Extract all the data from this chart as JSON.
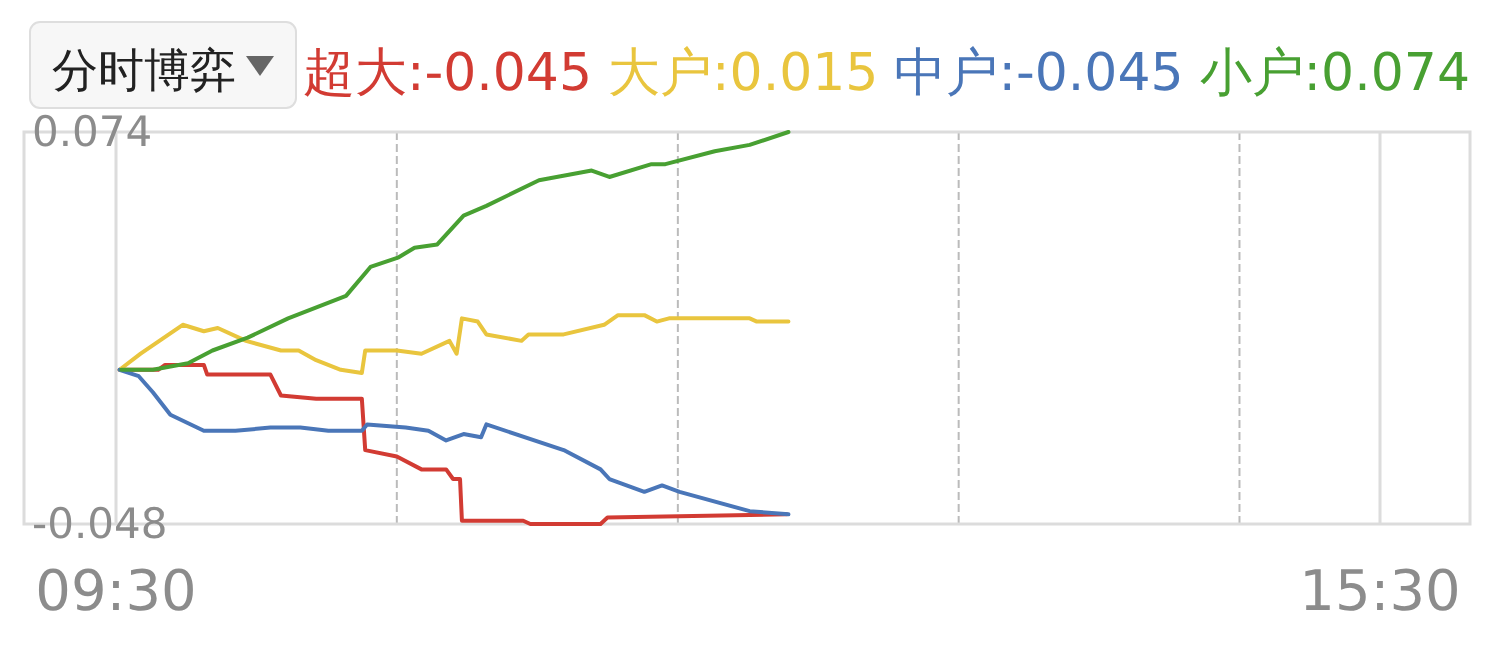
{
  "chart_data": {
    "type": "line",
    "title": "分时博弈",
    "series": [
      {
        "name": "超大:-0.045",
        "color": "#d23b33",
        "x": [
          9.517,
          9.7,
          9.733,
          9.917,
          9.933,
          10.233,
          10.283,
          10.45,
          10.667,
          10.683,
          10.833,
          10.95,
          11.067,
          11.1,
          11.133,
          11.142,
          11.433,
          11.467,
          11.8,
          11.833,
          12.683
        ],
        "values": [
          0.0,
          0.0,
          0.0015,
          0.0015,
          -0.0015,
          -0.0015,
          -0.008,
          -0.009,
          -0.009,
          -0.025,
          -0.027,
          -0.031,
          -0.031,
          -0.034,
          -0.034,
          -0.047,
          -0.047,
          -0.048,
          -0.048,
          -0.046,
          -0.045
        ]
      },
      {
        "name": "大户:0.015",
        "color": "#e9c53e",
        "x": [
          9.517,
          9.617,
          9.817,
          9.917,
          9.983,
          10.117,
          10.283,
          10.367,
          10.45,
          10.567,
          10.667,
          10.683,
          10.833,
          10.95,
          11.083,
          11.117,
          11.142,
          11.217,
          11.258,
          11.425,
          11.458,
          11.625,
          11.817,
          11.883,
          12.008,
          12.067,
          12.125,
          12.508,
          12.542,
          12.692
        ],
        "values": [
          0.0,
          0.005,
          0.014,
          0.012,
          0.013,
          0.009,
          0.006,
          0.006,
          0.003,
          0.0,
          -0.001,
          0.006,
          0.006,
          0.005,
          0.009,
          0.005,
          0.016,
          0.015,
          0.011,
          0.009,
          0.011,
          0.011,
          0.014,
          0.017,
          0.017,
          0.015,
          0.016,
          0.016,
          0.015,
          0.015
        ]
      },
      {
        "name": "中户:-0.045",
        "color": "#4a76b8",
        "x": [
          9.517,
          9.608,
          9.675,
          9.758,
          9.917,
          10.067,
          10.233,
          10.375,
          10.508,
          10.667,
          10.692,
          10.875,
          10.983,
          11.067,
          11.15,
          11.233,
          11.258,
          11.625,
          11.8,
          11.842,
          12.008,
          12.092,
          12.175,
          12.508,
          12.692
        ],
        "values": [
          0.0,
          -0.002,
          -0.007,
          -0.014,
          -0.019,
          -0.019,
          -0.018,
          -0.018,
          -0.019,
          -0.019,
          -0.017,
          -0.018,
          -0.019,
          -0.022,
          -0.02,
          -0.021,
          -0.017,
          -0.025,
          -0.031,
          -0.034,
          -0.038,
          -0.036,
          -0.038,
          -0.044,
          -0.045
        ]
      },
      {
        "name": "小户:0.074",
        "color": "#48a032",
        "x": [
          9.525,
          9.675,
          9.842,
          9.958,
          10.125,
          10.317,
          10.592,
          10.708,
          10.842,
          10.917,
          11.025,
          11.15,
          11.258,
          11.508,
          11.758,
          11.842,
          12.042,
          12.108,
          12.342,
          12.508,
          12.692
        ],
        "values": [
          0.0,
          0.0,
          0.002,
          0.006,
          0.01,
          0.016,
          0.023,
          0.032,
          0.035,
          0.038,
          0.039,
          0.048,
          0.051,
          0.059,
          0.062,
          0.06,
          0.064,
          0.064,
          0.068,
          0.07,
          0.074
        ]
      }
    ],
    "xlim": [
      9.5,
      15.5
    ],
    "xticks": [
      {
        "value": 9.5,
        "label": "09:30"
      },
      {
        "value": 10.833,
        "label": null
      },
      {
        "value": 12.167,
        "label": null
      },
      {
        "value": 13.5,
        "label": null
      },
      {
        "value": 14.833,
        "label": null
      },
      {
        "value": 15.5,
        "label": "15:30"
      }
    ],
    "ylim": [
      -0.048,
      0.074
    ],
    "yticks": [
      -0.048,
      0.074
    ],
    "grid": "x",
    "legend": "top right"
  }
}
